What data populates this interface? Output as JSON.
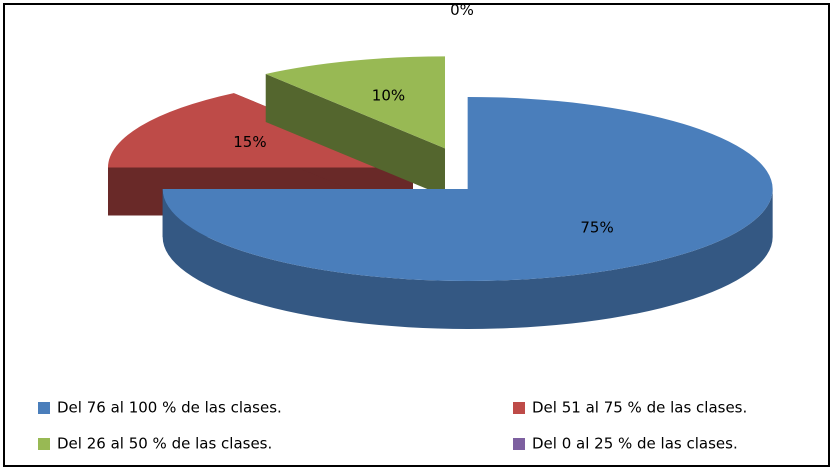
{
  "chart_data": {
    "type": "pie3d",
    "categories": [
      "Del 76 al 100 % de las clases.",
      "Del 51 al 75 % de las clases.",
      "Del 26 al 50 % de las clases.",
      "Del 0 al 25 % de las clases."
    ],
    "values": [
      75,
      15,
      10,
      0
    ],
    "value_labels": [
      "75%",
      "15%",
      "10%",
      "0%"
    ],
    "colors": [
      "#4a7ebb",
      "#be4b48",
      "#98b954",
      "#7d60a0"
    ],
    "legend": "bottom"
  }
}
